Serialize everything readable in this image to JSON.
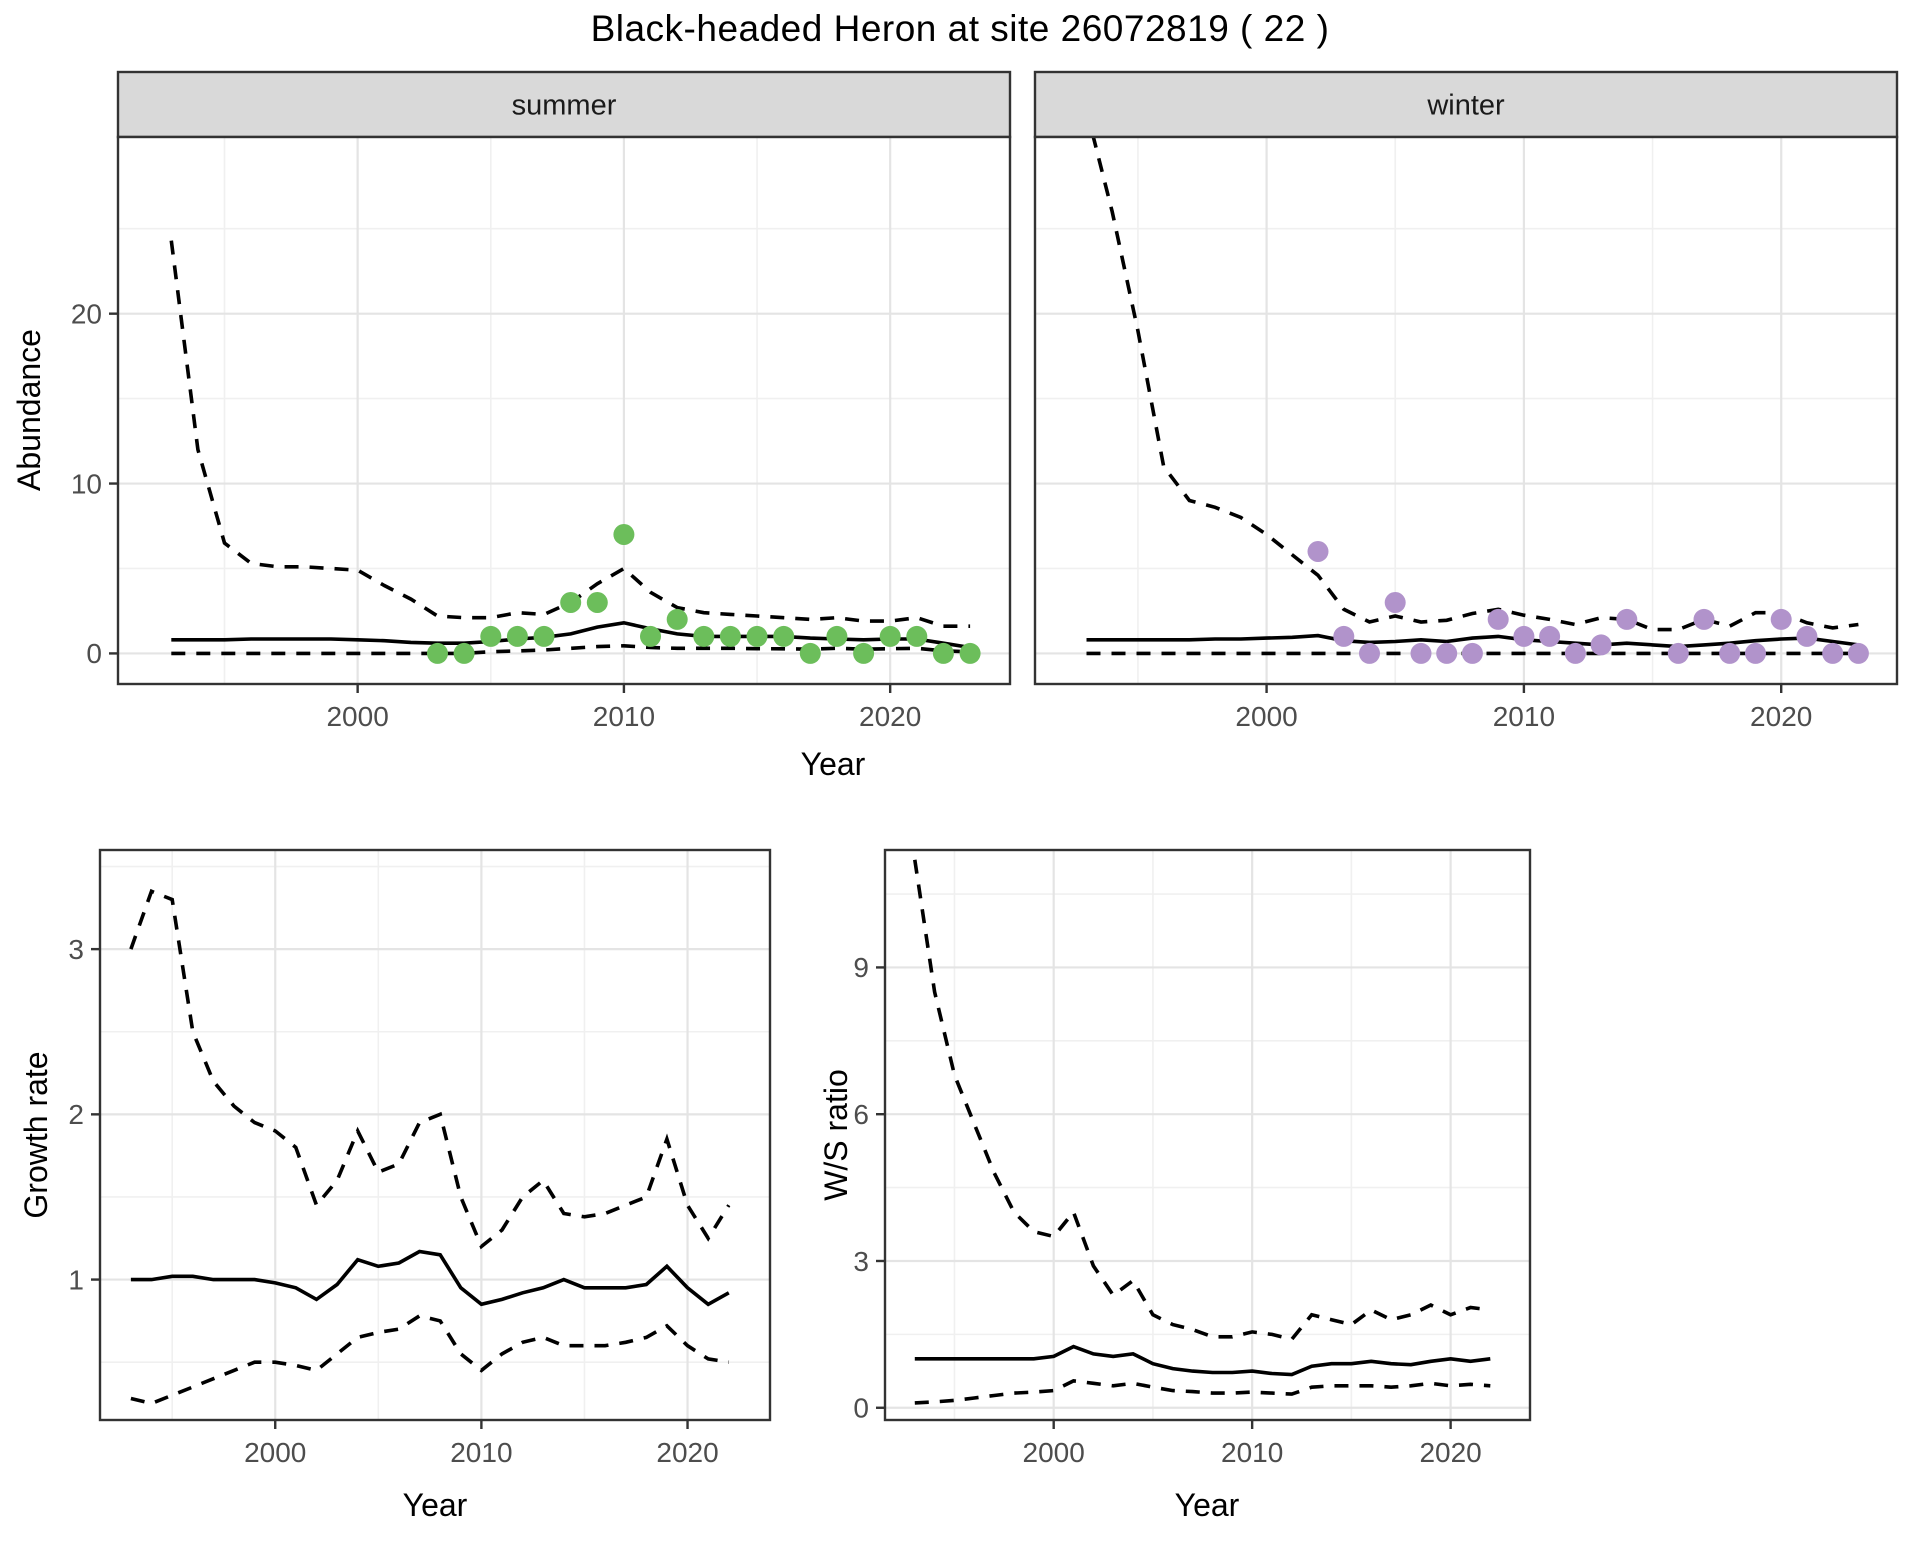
{
  "title": "Black-headed Heron at site 26072819 ( 22 )",
  "colors": {
    "summer_point": "#6CBE5B",
    "winter_point": "#B193CB",
    "line": "#000000",
    "strip_bg": "#D9D9D9",
    "strip_text": "#1A1A1A",
    "panel_border": "#333333",
    "grid_major": "#E4E4E4",
    "grid_minor": "#F0F0F0",
    "tick_label": "#4D4D4D",
    "axis_title": "#000000"
  },
  "chart_data": [
    {
      "id": "abundance",
      "type": "line",
      "xlabel": "Year",
      "ylabel": "Abundance",
      "xticks": [
        2000,
        2010,
        2020
      ],
      "yticks": [
        0,
        10,
        20
      ],
      "xlim": [
        1991,
        2024.5
      ],
      "ylim": [
        -1.8,
        30.4
      ],
      "grid": true,
      "legend": "none",
      "facets": [
        {
          "label": "summer",
          "point_color": "#6CBE5B",
          "points": {
            "x": [
              2003,
              2004,
              2005,
              2006,
              2007,
              2008,
              2009,
              2010,
              2011,
              2012,
              2013,
              2014,
              2015,
              2016,
              2017,
              2018,
              2019,
              2020,
              2021,
              2022,
              2023
            ],
            "y": [
              0,
              0,
              1,
              1,
              1,
              3,
              3,
              7,
              1,
              2,
              1,
              1,
              1,
              1,
              0,
              1,
              0,
              1,
              1,
              0,
              0
            ]
          },
          "series": [
            {
              "name": "median",
              "style": "solid",
              "x": [
                1993,
                1994,
                1995,
                1996,
                1997,
                1998,
                1999,
                2000,
                2001,
                2002,
                2003,
                2004,
                2005,
                2006,
                2007,
                2008,
                2009,
                2010,
                2011,
                2012,
                2013,
                2014,
                2015,
                2016,
                2017,
                2018,
                2019,
                2020,
                2021,
                2022,
                2023
              ],
              "y": [
                0.8,
                0.8,
                0.8,
                0.85,
                0.85,
                0.85,
                0.85,
                0.8,
                0.75,
                0.65,
                0.6,
                0.6,
                0.7,
                0.85,
                0.95,
                1.15,
                1.55,
                1.8,
                1.45,
                1.15,
                1.0,
                1.0,
                1.0,
                1.0,
                0.9,
                0.85,
                0.8,
                0.85,
                0.85,
                0.6,
                0.35
              ]
            },
            {
              "name": "upper_ci",
              "style": "dashed",
              "x": [
                1993,
                1994,
                1995,
                1996,
                1997,
                1998,
                1999,
                2000,
                2001,
                2002,
                2003,
                2004,
                2005,
                2006,
                2007,
                2008,
                2009,
                2010,
                2011,
                2012,
                2013,
                2014,
                2015,
                2016,
                2017,
                2018,
                2019,
                2020,
                2021,
                2022,
                2023
              ],
              "y": [
                24.3,
                12,
                6.5,
                5.3,
                5.1,
                5.1,
                5.0,
                4.9,
                4.0,
                3.2,
                2.2,
                2.1,
                2.1,
                2.4,
                2.3,
                3.0,
                4.1,
                5.0,
                3.6,
                2.7,
                2.4,
                2.3,
                2.2,
                2.1,
                2.0,
                2.1,
                1.9,
                1.9,
                2.1,
                1.6,
                1.6
              ]
            },
            {
              "name": "lower_ci",
              "style": "dashed",
              "x": [
                1993,
                1994,
                1995,
                1996,
                1997,
                1998,
                1999,
                2000,
                2001,
                2002,
                2003,
                2004,
                2005,
                2006,
                2007,
                2008,
                2009,
                2010,
                2011,
                2012,
                2013,
                2014,
                2015,
                2016,
                2017,
                2018,
                2019,
                2020,
                2021,
                2022,
                2023
              ],
              "y": [
                0,
                0,
                0,
                0,
                0,
                0,
                0,
                0,
                0,
                0,
                0,
                0,
                0.1,
                0.15,
                0.2,
                0.3,
                0.4,
                0.45,
                0.35,
                0.3,
                0.3,
                0.3,
                0.28,
                0.27,
                0.25,
                0.3,
                0.25,
                0.28,
                0.3,
                0.15,
                0.1
              ]
            }
          ]
        },
        {
          "label": "winter",
          "point_color": "#B193CB",
          "points": {
            "x": [
              2002,
              2003,
              2004,
              2005,
              2006,
              2007,
              2008,
              2009,
              2010,
              2011,
              2012,
              2013,
              2014,
              2016,
              2017,
              2018,
              2019,
              2020,
              2021,
              2022,
              2023
            ],
            "y": [
              6,
              1,
              0,
              3,
              0,
              0,
              0,
              2,
              1,
              1,
              0,
              0.5,
              2,
              0,
              2,
              0,
              0,
              2,
              1,
              0,
              0
            ]
          },
          "series": [
            {
              "name": "median",
              "style": "solid",
              "x": [
                1993,
                1994,
                1995,
                1996,
                1997,
                1998,
                1999,
                2000,
                2001,
                2002,
                2003,
                2004,
                2005,
                2006,
                2007,
                2008,
                2009,
                2010,
                2011,
                2012,
                2013,
                2014,
                2015,
                2016,
                2017,
                2018,
                2019,
                2020,
                2021,
                2022,
                2023
              ],
              "y": [
                0.8,
                0.8,
                0.8,
                0.8,
                0.8,
                0.85,
                0.85,
                0.9,
                0.95,
                1.05,
                0.75,
                0.65,
                0.7,
                0.8,
                0.7,
                0.9,
                1.0,
                0.8,
                0.7,
                0.6,
                0.5,
                0.6,
                0.5,
                0.4,
                0.5,
                0.6,
                0.75,
                0.85,
                0.9,
                0.7,
                0.5
              ]
            },
            {
              "name": "upper_ci",
              "style": "dashed",
              "x": [
                1993,
                1994,
                1995,
                1996,
                1997,
                1998,
                1999,
                2000,
                2001,
                2002,
                2003,
                2004,
                2005,
                2006,
                2007,
                2008,
                2009,
                2010,
                2011,
                2012,
                2013,
                2014,
                2015,
                2016,
                2017,
                2018,
                2019,
                2020,
                2021,
                2022,
                2023
              ],
              "y": [
                32,
                26,
                19,
                11,
                9.0,
                8.6,
                8.0,
                7.0,
                5.8,
                4.6,
                2.6,
                1.85,
                2.2,
                1.85,
                1.95,
                2.35,
                2.6,
                2.25,
                2.0,
                1.7,
                2.1,
                2.0,
                1.4,
                1.4,
                2.0,
                1.6,
                2.4,
                2.4,
                1.8,
                1.5,
                1.7
              ]
            },
            {
              "name": "lower_ci",
              "style": "dashed",
              "x": [
                1993,
                1994,
                1995,
                1996,
                1997,
                1998,
                1999,
                2000,
                2001,
                2002,
                2003,
                2004,
                2005,
                2006,
                2007,
                2008,
                2009,
                2010,
                2011,
                2012,
                2013,
                2014,
                2015,
                2016,
                2017,
                2018,
                2019,
                2020,
                2021,
                2022,
                2023
              ],
              "y": [
                0,
                0,
                0,
                0,
                0,
                0,
                0,
                0,
                0,
                0,
                0,
                0,
                0,
                0,
                0,
                0,
                0,
                0,
                0,
                0,
                0,
                0,
                0,
                0,
                0,
                0,
                0,
                0,
                0,
                0,
                0
              ]
            }
          ]
        }
      ]
    },
    {
      "id": "growth",
      "type": "line",
      "xlabel": "Year",
      "ylabel": "Growth rate",
      "xticks": [
        2000,
        2010,
        2020
      ],
      "yticks": [
        1,
        2,
        3
      ],
      "xlim": [
        1991.5,
        2024
      ],
      "ylim": [
        0.15,
        3.6
      ],
      "grid": true,
      "legend": "none",
      "series": [
        {
          "name": "median",
          "style": "solid",
          "x": [
            1993,
            1994,
            1995,
            1996,
            1997,
            1998,
            1999,
            2000,
            2001,
            2002,
            2003,
            2004,
            2005,
            2006,
            2007,
            2008,
            2009,
            2010,
            2011,
            2012,
            2013,
            2014,
            2015,
            2016,
            2017,
            2018,
            2019,
            2020,
            2021,
            2022
          ],
          "y": [
            1.0,
            1.0,
            1.02,
            1.02,
            1.0,
            1.0,
            1.0,
            0.98,
            0.95,
            0.88,
            0.97,
            1.12,
            1.08,
            1.1,
            1.17,
            1.15,
            0.95,
            0.85,
            0.88,
            0.92,
            0.95,
            1.0,
            0.95,
            0.95,
            0.95,
            0.97,
            1.08,
            0.95,
            0.85,
            0.92
          ]
        },
        {
          "name": "upper_ci",
          "style": "dashed",
          "x": [
            1993,
            1994,
            1995,
            1996,
            1997,
            1998,
            1999,
            2000,
            2001,
            2002,
            2003,
            2004,
            2005,
            2006,
            2007,
            2008,
            2009,
            2010,
            2011,
            2012,
            2013,
            2014,
            2015,
            2016,
            2017,
            2018,
            2019,
            2020,
            2021,
            2022
          ],
          "y": [
            3.0,
            3.35,
            3.3,
            2.5,
            2.2,
            2.05,
            1.95,
            1.9,
            1.8,
            1.45,
            1.6,
            1.9,
            1.65,
            1.7,
            1.95,
            2.0,
            1.5,
            1.2,
            1.3,
            1.5,
            1.6,
            1.4,
            1.38,
            1.4,
            1.45,
            1.5,
            1.85,
            1.45,
            1.25,
            1.45
          ]
        },
        {
          "name": "lower_ci",
          "style": "dashed",
          "x": [
            1993,
            1994,
            1995,
            1996,
            1997,
            1998,
            1999,
            2000,
            2001,
            2002,
            2003,
            2004,
            2005,
            2006,
            2007,
            2008,
            2009,
            2010,
            2011,
            2012,
            2013,
            2014,
            2015,
            2016,
            2017,
            2018,
            2019,
            2020,
            2021,
            2022
          ],
          "y": [
            0.28,
            0.25,
            0.3,
            0.35,
            0.4,
            0.45,
            0.5,
            0.5,
            0.48,
            0.45,
            0.55,
            0.65,
            0.68,
            0.7,
            0.78,
            0.75,
            0.55,
            0.45,
            0.55,
            0.62,
            0.65,
            0.6,
            0.6,
            0.6,
            0.62,
            0.65,
            0.72,
            0.6,
            0.52,
            0.5
          ]
        }
      ]
    },
    {
      "id": "ratio",
      "type": "line",
      "xlabel": "Year",
      "ylabel": "W/S ratio",
      "xticks": [
        2000,
        2010,
        2020
      ],
      "yticks": [
        0,
        3,
        6,
        9
      ],
      "xlim": [
        1991.5,
        2024
      ],
      "ylim": [
        -0.25,
        11.4
      ],
      "grid": true,
      "legend": "none",
      "series": [
        {
          "name": "median",
          "style": "solid",
          "x": [
            1993,
            1994,
            1995,
            1996,
            1997,
            1998,
            1999,
            2000,
            2001,
            2002,
            2003,
            2004,
            2005,
            2006,
            2007,
            2008,
            2009,
            2010,
            2011,
            2012,
            2013,
            2014,
            2015,
            2016,
            2017,
            2018,
            2019,
            2020,
            2021,
            2022
          ],
          "y": [
            1.0,
            1.0,
            1.0,
            1.0,
            1.0,
            1.0,
            1.0,
            1.05,
            1.25,
            1.1,
            1.05,
            1.1,
            0.9,
            0.8,
            0.75,
            0.72,
            0.72,
            0.75,
            0.7,
            0.68,
            0.85,
            0.9,
            0.9,
            0.95,
            0.9,
            0.88,
            0.95,
            1.0,
            0.95,
            1.0
          ]
        },
        {
          "name": "upper_ci",
          "style": "dashed",
          "x": [
            1993,
            1994,
            1995,
            1996,
            1997,
            1998,
            1999,
            2000,
            2001,
            2002,
            2003,
            2004,
            2005,
            2006,
            2007,
            2008,
            2009,
            2010,
            2011,
            2012,
            2013,
            2014,
            2015,
            2016,
            2017,
            2018,
            2019,
            2020,
            2021,
            2022
          ],
          "y": [
            11.2,
            8.5,
            6.8,
            5.8,
            4.8,
            4.0,
            3.6,
            3.5,
            4.0,
            2.9,
            2.3,
            2.6,
            1.9,
            1.7,
            1.6,
            1.45,
            1.45,
            1.55,
            1.5,
            1.4,
            1.9,
            1.8,
            1.7,
            2.0,
            1.8,
            1.9,
            2.1,
            1.9,
            2.05,
            2.0
          ]
        },
        {
          "name": "lower_ci",
          "style": "dashed",
          "x": [
            1993,
            1994,
            1995,
            1996,
            1997,
            1998,
            1999,
            2000,
            2001,
            2002,
            2003,
            2004,
            2005,
            2006,
            2007,
            2008,
            2009,
            2010,
            2011,
            2012,
            2013,
            2014,
            2015,
            2016,
            2017,
            2018,
            2019,
            2020,
            2021,
            2022
          ],
          "y": [
            0.1,
            0.12,
            0.15,
            0.2,
            0.25,
            0.3,
            0.32,
            0.35,
            0.55,
            0.5,
            0.45,
            0.5,
            0.42,
            0.35,
            0.33,
            0.3,
            0.3,
            0.32,
            0.3,
            0.28,
            0.42,
            0.45,
            0.45,
            0.45,
            0.42,
            0.45,
            0.5,
            0.45,
            0.48,
            0.45
          ]
        }
      ]
    }
  ]
}
